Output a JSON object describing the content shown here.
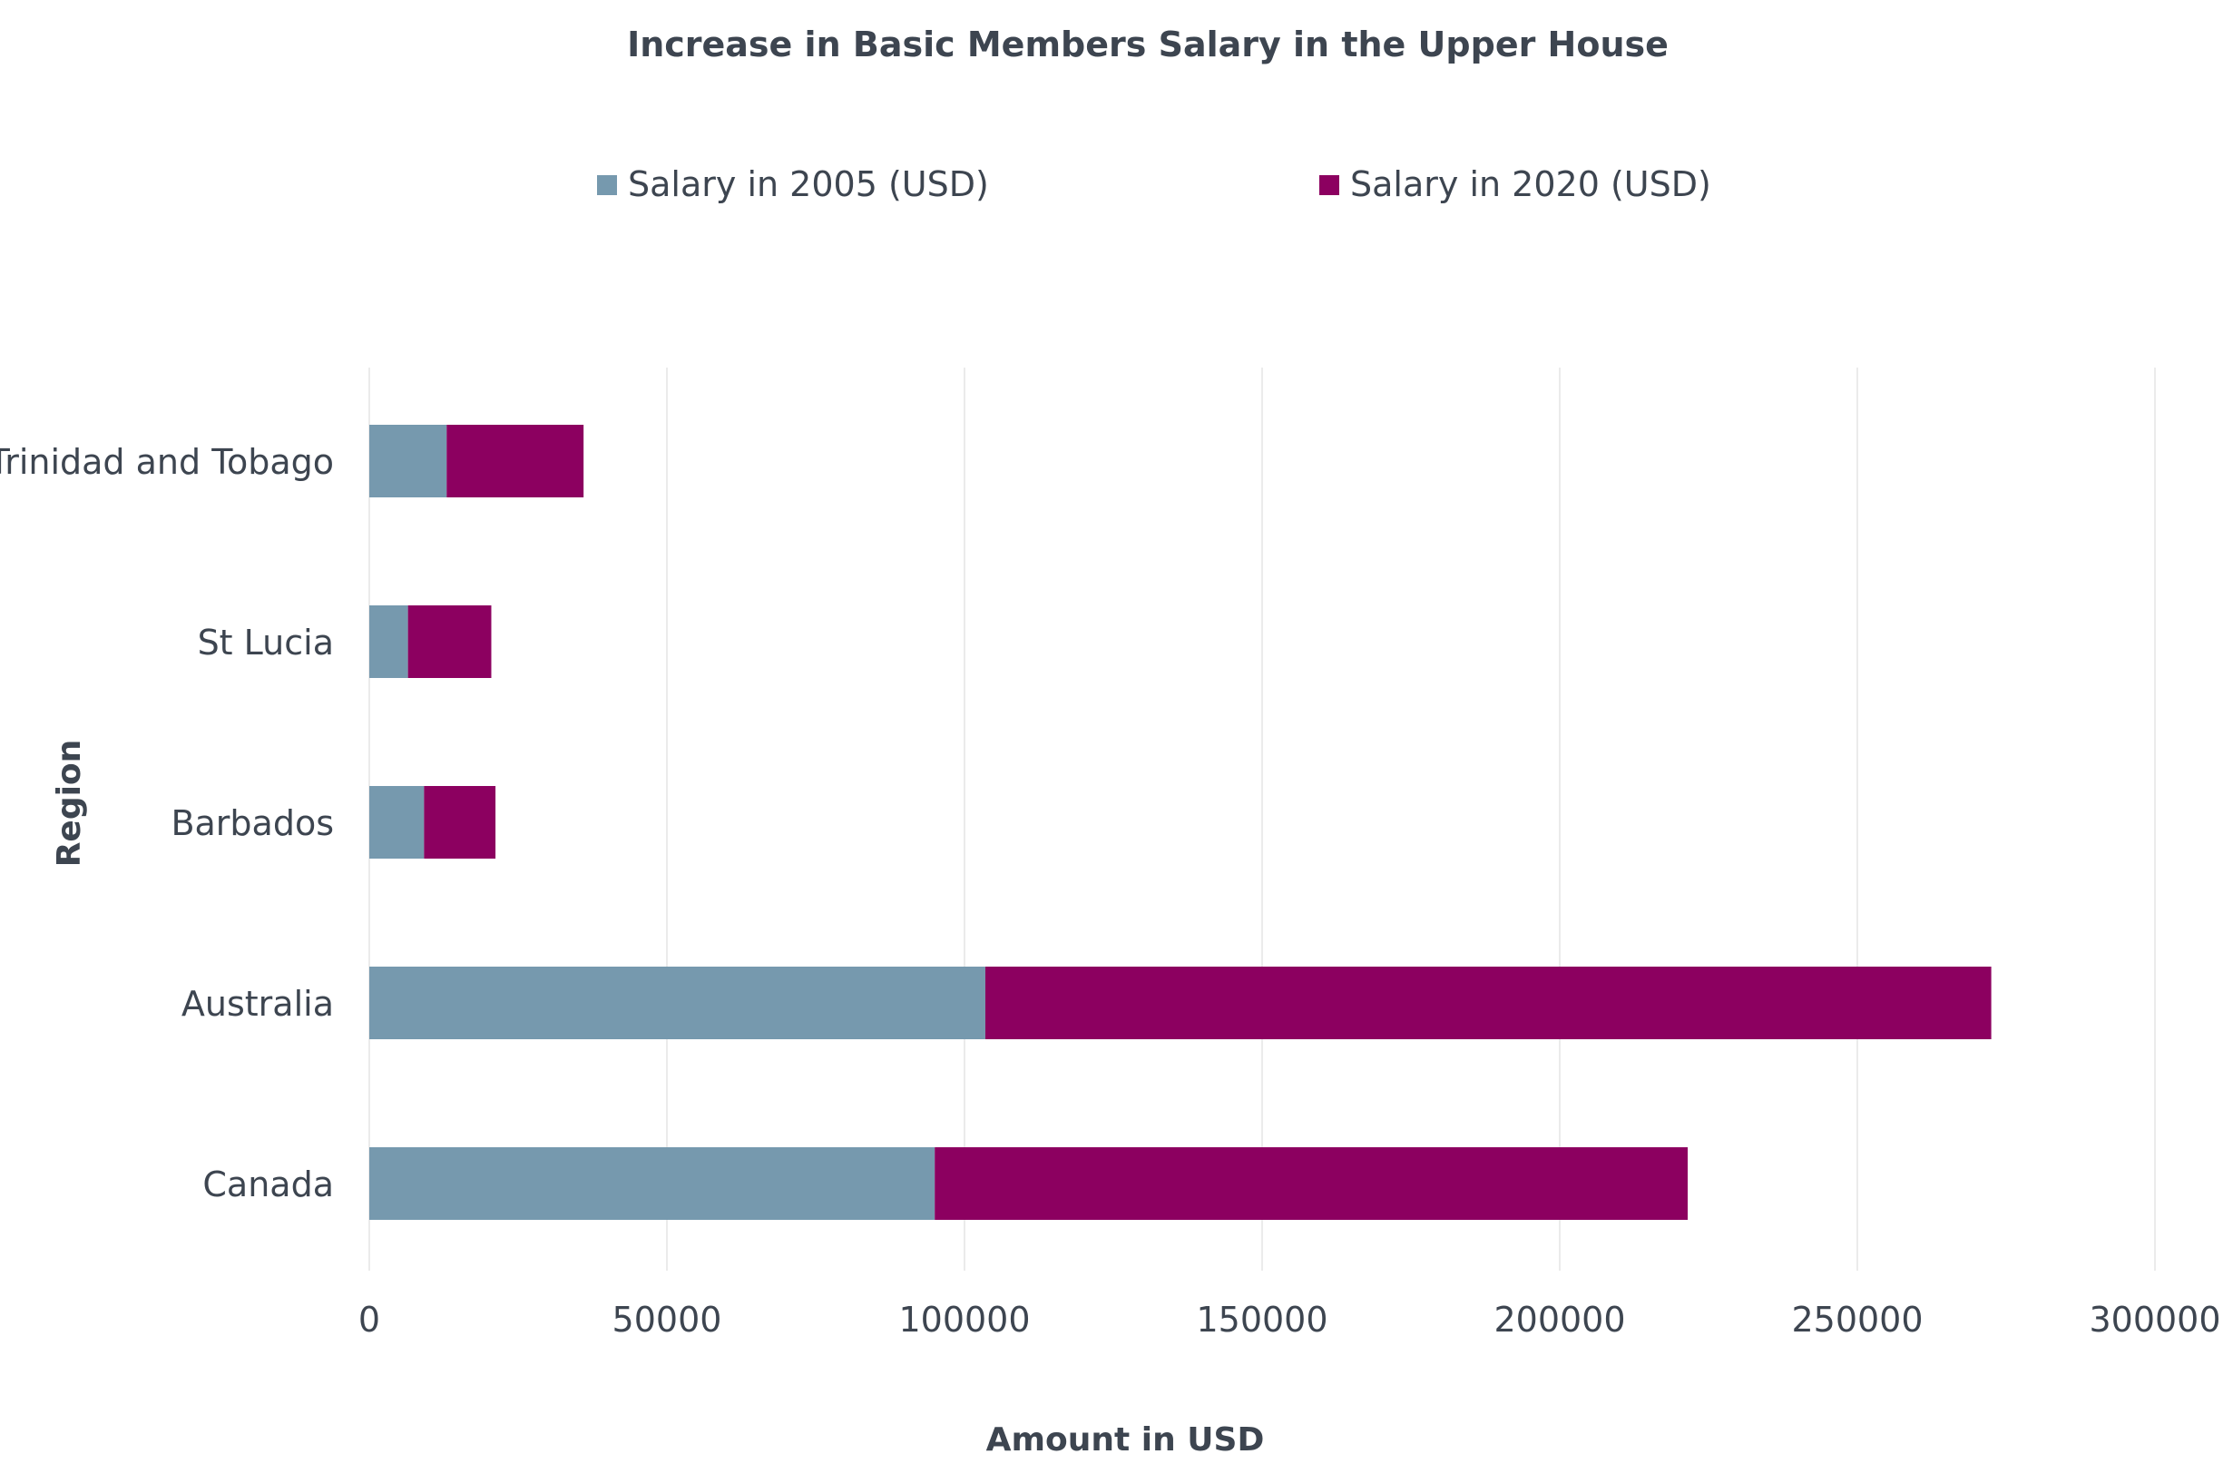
{
  "chart_data": {
    "type": "bar",
    "orientation": "horizontal",
    "stacked": true,
    "title": "Increase in Basic Members Salary in the Upper House",
    "xlabel": "Amount in USD",
    "ylabel": "Region",
    "categories": [
      "Trinidad and Tobago",
      "St Lucia",
      "Barbados",
      "Australia",
      "Canada"
    ],
    "series": [
      {
        "name": "Salary in 2005 (USD)",
        "color": "#7699ae",
        "values": [
          13000,
          6500,
          9200,
          103500,
          95000
        ]
      },
      {
        "name": "Salary in 2020 (USD)",
        "color": "#8c0060",
        "values": [
          23000,
          14000,
          12000,
          169000,
          126500
        ]
      }
    ],
    "xlim": [
      0,
      300000
    ],
    "xticks": [
      "0",
      "50000",
      "100000",
      "150000",
      "200000",
      "250000",
      "300000"
    ],
    "xtick_values": [
      0,
      50000,
      100000,
      150000,
      200000,
      250000,
      300000
    ],
    "grid": "vertical",
    "legend": "top"
  }
}
